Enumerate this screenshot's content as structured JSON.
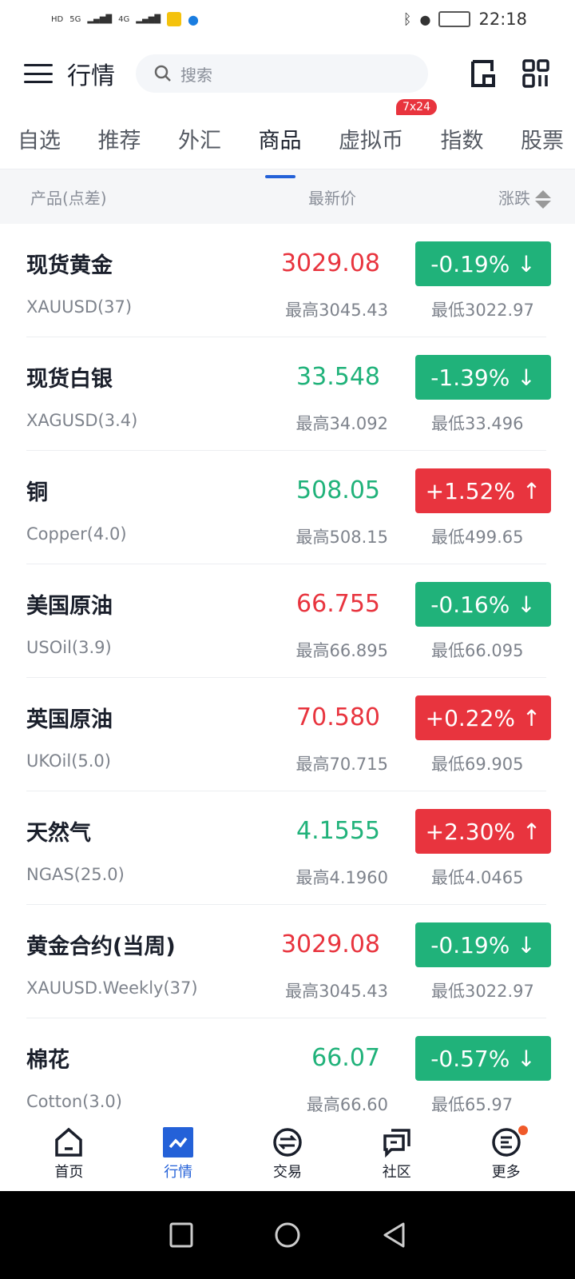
{
  "status": {
    "time": "22:18",
    "signal_1": "5G",
    "signal_2": "4G"
  },
  "header": {
    "title": "行情",
    "search_placeholder": "搜索"
  },
  "tabs": [
    {
      "label": "自选"
    },
    {
      "label": "推荐"
    },
    {
      "label": "外汇"
    },
    {
      "label": "商品",
      "active": true
    },
    {
      "label": "虚拟币",
      "badge": "7x24"
    },
    {
      "label": "指数"
    },
    {
      "label": "股票"
    }
  ],
  "columns": {
    "product": "产品(点差)",
    "price": "最新价",
    "change": "涨跌"
  },
  "colors": {
    "up": "#e8343e",
    "down": "#20b27a",
    "accent": "#2461d8"
  },
  "rows": [
    {
      "name": "现货黄金",
      "code": "XAUUSD(37)",
      "price": "3029.08",
      "price_dir": "up",
      "high": "最高3045.43",
      "low": "最低3022.97",
      "change": "-0.19% ↓",
      "change_dir": "down"
    },
    {
      "name": "现货白银",
      "code": "XAGUSD(3.4)",
      "price": "33.548",
      "price_dir": "down",
      "high": "最高34.092",
      "low": "最低33.496",
      "change": "-1.39% ↓",
      "change_dir": "down"
    },
    {
      "name": "铜",
      "code": "Copper(4.0)",
      "price": "508.05",
      "price_dir": "down",
      "high": "最高508.15",
      "low": "最低499.65",
      "change": "+1.52% ↑",
      "change_dir": "up"
    },
    {
      "name": "美国原油",
      "code": "USOil(3.9)",
      "price": "66.755",
      "price_dir": "up",
      "high": "最高66.895",
      "low": "最低66.095",
      "change": "-0.16% ↓",
      "change_dir": "down"
    },
    {
      "name": "英国原油",
      "code": "UKOil(5.0)",
      "price": "70.580",
      "price_dir": "up",
      "high": "最高70.715",
      "low": "最低69.905",
      "change": "+0.22% ↑",
      "change_dir": "up"
    },
    {
      "name": "天然气",
      "code": "NGAS(25.0)",
      "price": "4.1555",
      "price_dir": "down",
      "high": "最高4.1960",
      "low": "最低4.0465",
      "change": "+2.30% ↑",
      "change_dir": "up"
    },
    {
      "name": "黄金合约(当周)",
      "code": "XAUUSD.Weekly(37)",
      "price": "3029.08",
      "price_dir": "up",
      "high": "最高3045.43",
      "low": "最低3022.97",
      "change": "-0.19% ↓",
      "change_dir": "down"
    },
    {
      "name": "棉花",
      "code": "Cotton(3.0)",
      "price": "66.07",
      "price_dir": "down",
      "high": "最高66.60",
      "low": "最低65.97",
      "change": "-0.57% ↓",
      "change_dir": "down"
    }
  ],
  "bottom_nav": [
    {
      "label": "首页",
      "icon": "home-icon"
    },
    {
      "label": "行情",
      "icon": "chart-icon",
      "active": true
    },
    {
      "label": "交易",
      "icon": "exchange-icon"
    },
    {
      "label": "社区",
      "icon": "chat-icon"
    },
    {
      "label": "更多",
      "icon": "more-icon",
      "dot": true
    }
  ]
}
